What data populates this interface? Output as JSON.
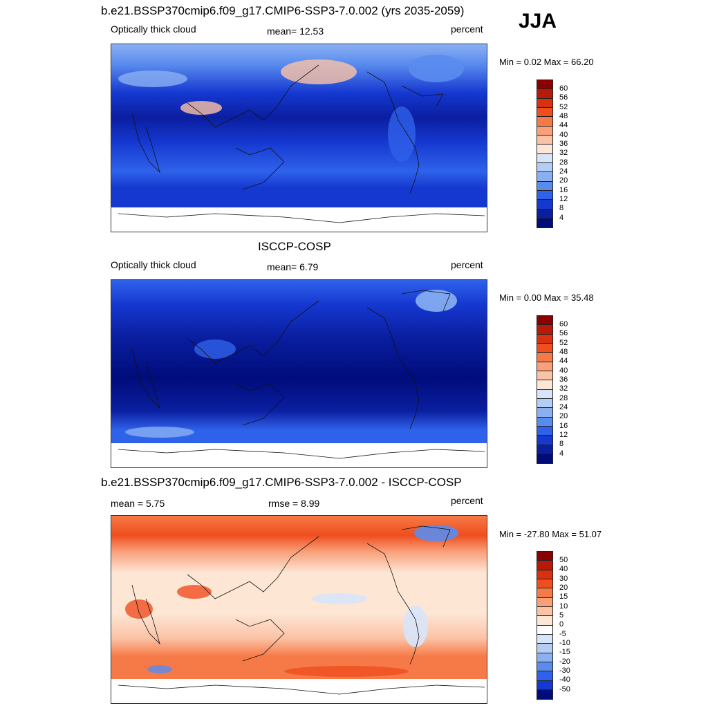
{
  "season": "JJA",
  "panels": [
    {
      "title": "b.e21.BSSP370cmip6.f09_g17.CMIP6-SSP3-7.0.002 (yrs 2035-2059)",
      "left_label": "Optically thick cloud",
      "center_label": "mean=  12.53",
      "units": "percent",
      "minmax": "Min =    0.02 Max =  66.20",
      "palette": "abs"
    },
    {
      "title": "ISCCP-COSP",
      "left_label": "Optically thick cloud",
      "center_label": "mean=   6.79",
      "units": "percent",
      "minmax": "Min =    0.00 Max =  35.48",
      "palette": "abs"
    },
    {
      "title": "b.e21.BSSP370cmip6.f09_g17.CMIP6-SSP3-7.0.002 - ISCCP-COSP",
      "left_label": "mean =    5.75",
      "center_label": "rmse =    8.99",
      "units": "percent",
      "minmax": "Min = -27.80 Max =  51.07",
      "palette": "diff"
    }
  ],
  "colorbars": {
    "abs": {
      "labels": [
        "60",
        "56",
        "52",
        "48",
        "44",
        "40",
        "36",
        "32",
        "28",
        "24",
        "20",
        "16",
        "12",
        "8",
        "4"
      ],
      "colors": [
        "#8b0000",
        "#b81a0a",
        "#d93010",
        "#f04e1e",
        "#f67a48",
        "#f9a07a",
        "#fbc3a6",
        "#fde6d4",
        "#d8e4f8",
        "#b3cdf5",
        "#8ab0f2",
        "#5a8cee",
        "#2f62ea",
        "#1538d0",
        "#0a1ea0",
        "#000c7a"
      ]
    },
    "diff": {
      "labels": [
        "50",
        "40",
        "30",
        "20",
        "15",
        "10",
        "5",
        "0",
        "-5",
        "-10",
        "-15",
        "-20",
        "-30",
        "-40",
        "-50"
      ],
      "colors": [
        "#8b0000",
        "#b81a0a",
        "#d93010",
        "#f04e1e",
        "#f67a48",
        "#f9a07a",
        "#fbc3a6",
        "#fde6d4",
        "#ffffff",
        "#d8e4f8",
        "#b3cdf5",
        "#8ab0f2",
        "#5a8cee",
        "#2f62ea",
        "#1538d0",
        "#000c7a"
      ]
    }
  }
}
